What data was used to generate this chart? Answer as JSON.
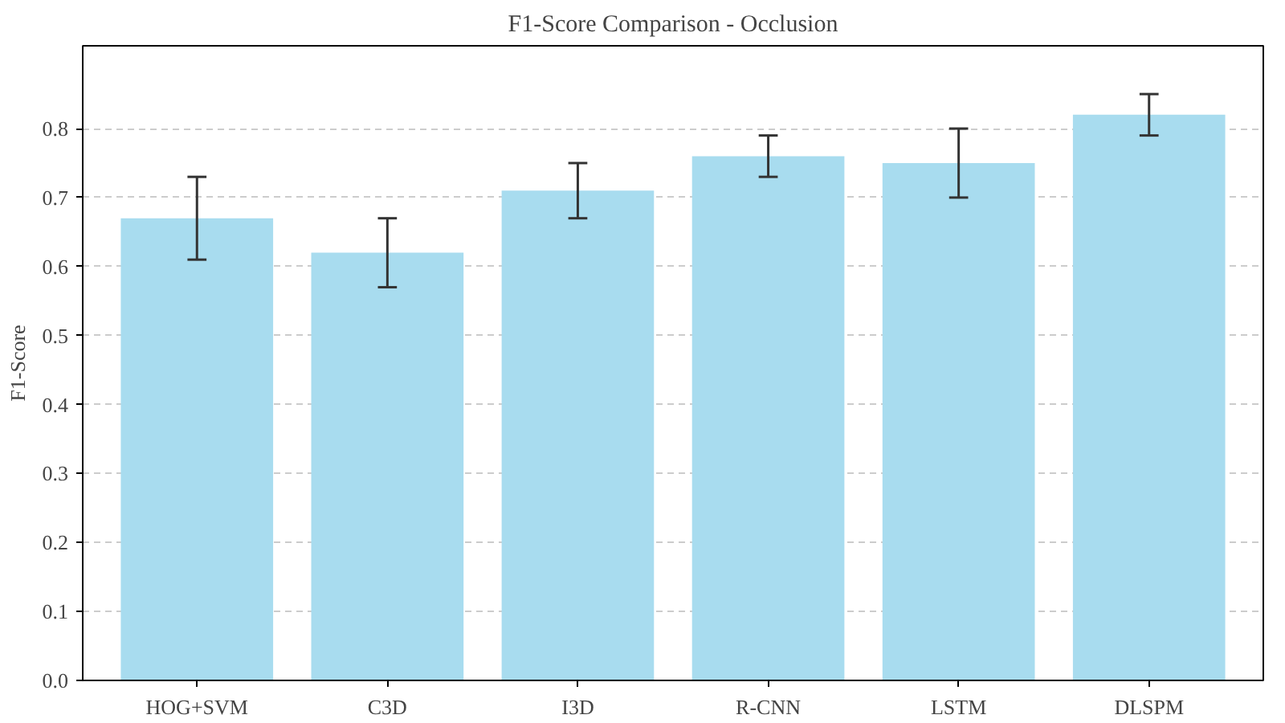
{
  "chart_data": {
    "type": "bar",
    "title": "F1-Score Comparison - Occlusion",
    "ylabel": "F1-Score",
    "categories": [
      "HOG+SVM",
      "C3D",
      "I3D",
      "R-CNN",
      "LSTM",
      "DLSPM"
    ],
    "values": [
      0.67,
      0.62,
      0.71,
      0.76,
      0.75,
      0.82
    ],
    "errors": [
      0.06,
      0.05,
      0.04,
      0.03,
      0.05,
      0.03
    ],
    "color": "#a8dcef",
    "ylim": [
      0,
      0.92
    ],
    "yticks": [
      {
        "value": 0,
        "label": "0.0"
      },
      0.1,
      0.2,
      0.3,
      0.4,
      0.5,
      0.6,
      0.7,
      0.8
    ],
    "grid": "y"
  }
}
